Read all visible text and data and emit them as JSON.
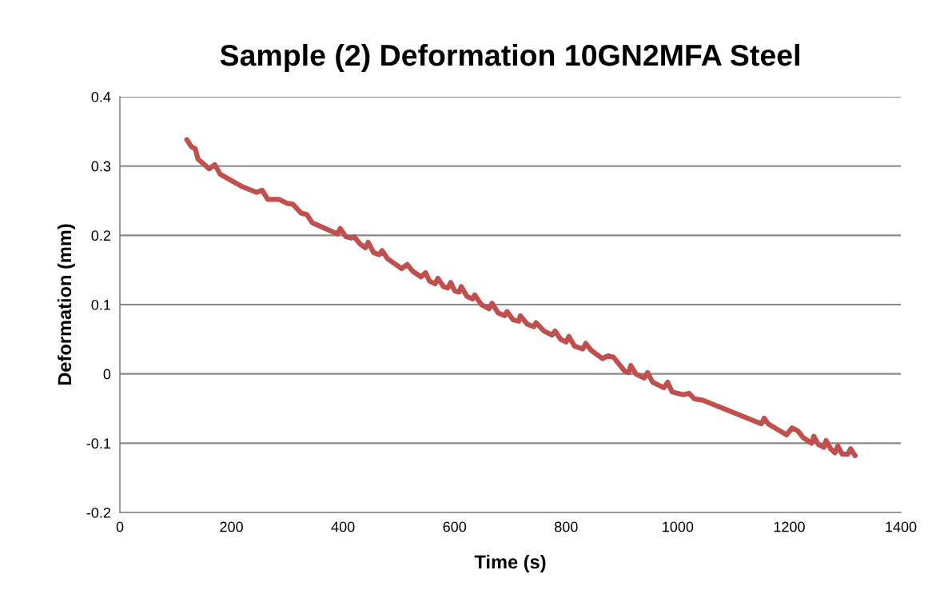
{
  "chart_data": {
    "type": "line",
    "title": "Sample (2) Deformation 10GN2MFA Steel",
    "xlabel": "Time (s)",
    "ylabel": "Deformation (mm)",
    "xlim": [
      0,
      1400
    ],
    "xticks": [
      0,
      200,
      400,
      600,
      800,
      1000,
      1200,
      1400
    ],
    "ylim": [
      -0.2,
      0.4
    ],
    "yticks": [
      -0.2,
      -0.1,
      0,
      0.1,
      0.2,
      0.3,
      0.4
    ],
    "grid": "y",
    "legend": false,
    "series": [
      {
        "color": "#c0504d",
        "x": [
          120,
          128,
          135,
          140,
          160,
          170,
          180,
          220,
          245,
          255,
          265,
          285,
          300,
          310,
          325,
          335,
          345,
          390,
          395,
          405,
          415,
          420,
          430,
          440,
          445,
          455,
          465,
          470,
          480,
          505,
          515,
          525,
          540,
          548,
          555,
          565,
          570,
          580,
          588,
          593,
          600,
          608,
          612,
          622,
          632,
          636,
          648,
          662,
          667,
          678,
          690,
          694,
          705,
          715,
          718,
          730,
          742,
          746,
          760,
          775,
          780,
          790,
          800,
          805,
          815,
          830,
          835,
          845,
          865,
          875,
          885,
          905,
          912,
          916,
          925,
          940,
          946,
          955,
          975,
          982,
          990,
          1010,
          1020,
          1030,
          1045,
          1150,
          1155,
          1162,
          1195,
          1205,
          1215,
          1225,
          1240,
          1244,
          1252,
          1262,
          1266,
          1274,
          1282,
          1287,
          1295,
          1305,
          1310,
          1318
        ],
        "values": [
          0.338,
          0.328,
          0.325,
          0.31,
          0.296,
          0.302,
          0.288,
          0.27,
          0.262,
          0.265,
          0.252,
          0.252,
          0.246,
          0.245,
          0.232,
          0.23,
          0.218,
          0.202,
          0.21,
          0.198,
          0.196,
          0.198,
          0.188,
          0.182,
          0.19,
          0.175,
          0.172,
          0.178,
          0.166,
          0.152,
          0.158,
          0.148,
          0.14,
          0.146,
          0.134,
          0.13,
          0.138,
          0.126,
          0.124,
          0.132,
          0.12,
          0.118,
          0.126,
          0.112,
          0.108,
          0.114,
          0.1,
          0.094,
          0.102,
          0.088,
          0.084,
          0.09,
          0.078,
          0.076,
          0.084,
          0.072,
          0.068,
          0.074,
          0.062,
          0.056,
          0.062,
          0.05,
          0.046,
          0.054,
          0.04,
          0.036,
          0.044,
          0.034,
          0.022,
          0.026,
          0.024,
          0.004,
          0.002,
          0.012,
          0.0,
          -0.006,
          0.002,
          -0.012,
          -0.02,
          -0.012,
          -0.026,
          -0.03,
          -0.028,
          -0.036,
          -0.038,
          -0.072,
          -0.064,
          -0.072,
          -0.088,
          -0.078,
          -0.082,
          -0.092,
          -0.1,
          -0.09,
          -0.102,
          -0.106,
          -0.096,
          -0.108,
          -0.114,
          -0.104,
          -0.116,
          -0.116,
          -0.108,
          -0.118
        ]
      }
    ]
  }
}
